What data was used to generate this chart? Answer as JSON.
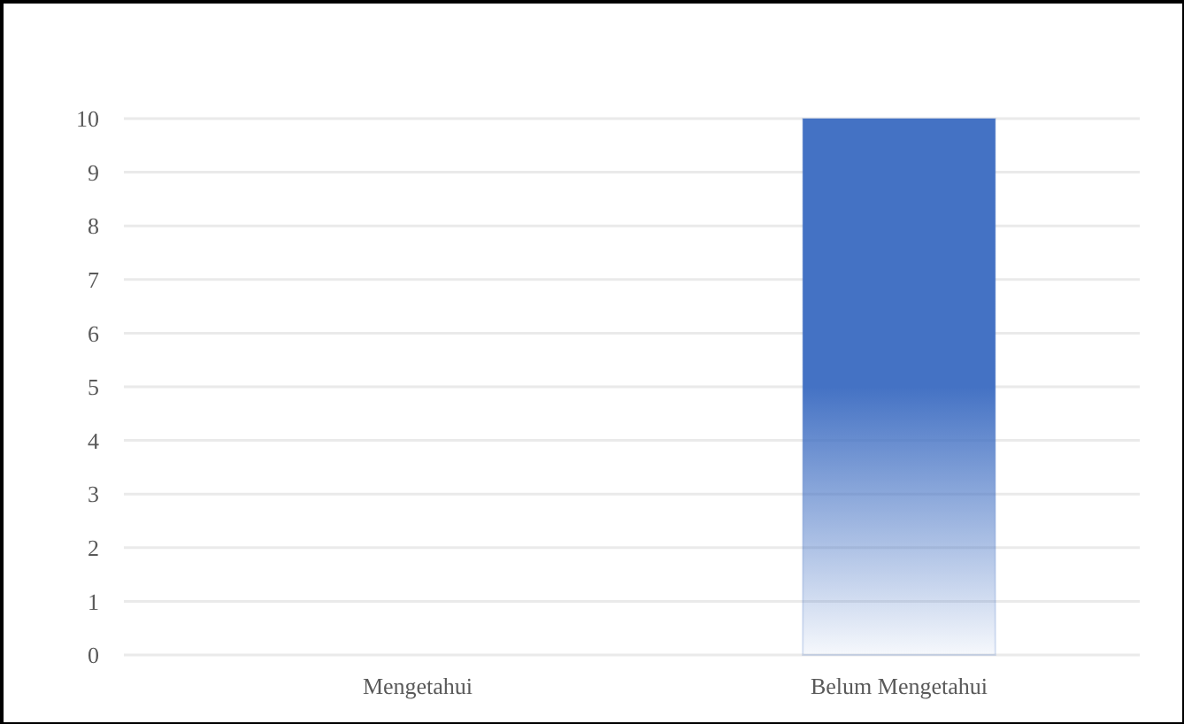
{
  "chart_data": {
    "type": "bar",
    "categories": [
      "Mengetahui",
      "Belum Mengetahui"
    ],
    "values": [
      0,
      10
    ],
    "color": "#4472c4",
    "ylim": [
      0,
      10
    ],
    "yticks": [
      0,
      1,
      2,
      3,
      4,
      5,
      6,
      7,
      8,
      9,
      10
    ],
    "grid": "y"
  }
}
